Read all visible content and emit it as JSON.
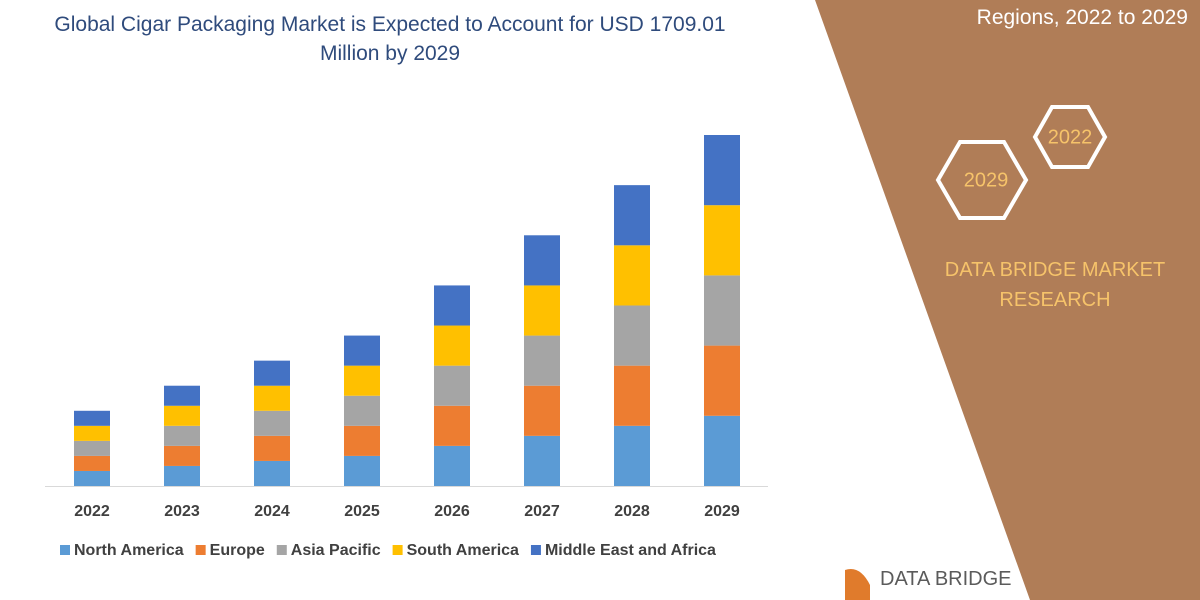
{
  "chart_data": {
    "type": "bar",
    "stacked": true,
    "title": "Global Cigar Packaging Market is Expected to Account for USD 1709.01 Million by 2029",
    "categories": [
      "2022",
      "2023",
      "2024",
      "2025",
      "2026",
      "2027",
      "2028",
      "2029"
    ],
    "series": [
      {
        "name": "North America",
        "color": "#5b9bd5",
        "values": [
          15,
          20,
          25,
          30,
          40,
          50,
          60,
          70
        ]
      },
      {
        "name": "Europe",
        "color": "#ed7d31",
        "values": [
          15,
          20,
          25,
          30,
          40,
          50,
          60,
          70
        ]
      },
      {
        "name": "Asia Pacific",
        "color": "#a5a5a5",
        "values": [
          15,
          20,
          25,
          30,
          40,
          50,
          60,
          70
        ]
      },
      {
        "name": "South America",
        "color": "#ffc000",
        "values": [
          15,
          20,
          25,
          30,
          40,
          50,
          60,
          70
        ]
      },
      {
        "name": "Middle East and Africa",
        "color": "#4472c4",
        "values": [
          15,
          20,
          25,
          30,
          40,
          50,
          60,
          70
        ]
      }
    ],
    "ylim": [
      0,
      350
    ]
  },
  "side_panel": {
    "subtitle": "Regions, 2022 to 2029",
    "hexagons": [
      "2022",
      "2029"
    ],
    "brand": "DATA BRIDGE MARKET RESEARCH"
  },
  "logo": "DATA BRIDGE"
}
